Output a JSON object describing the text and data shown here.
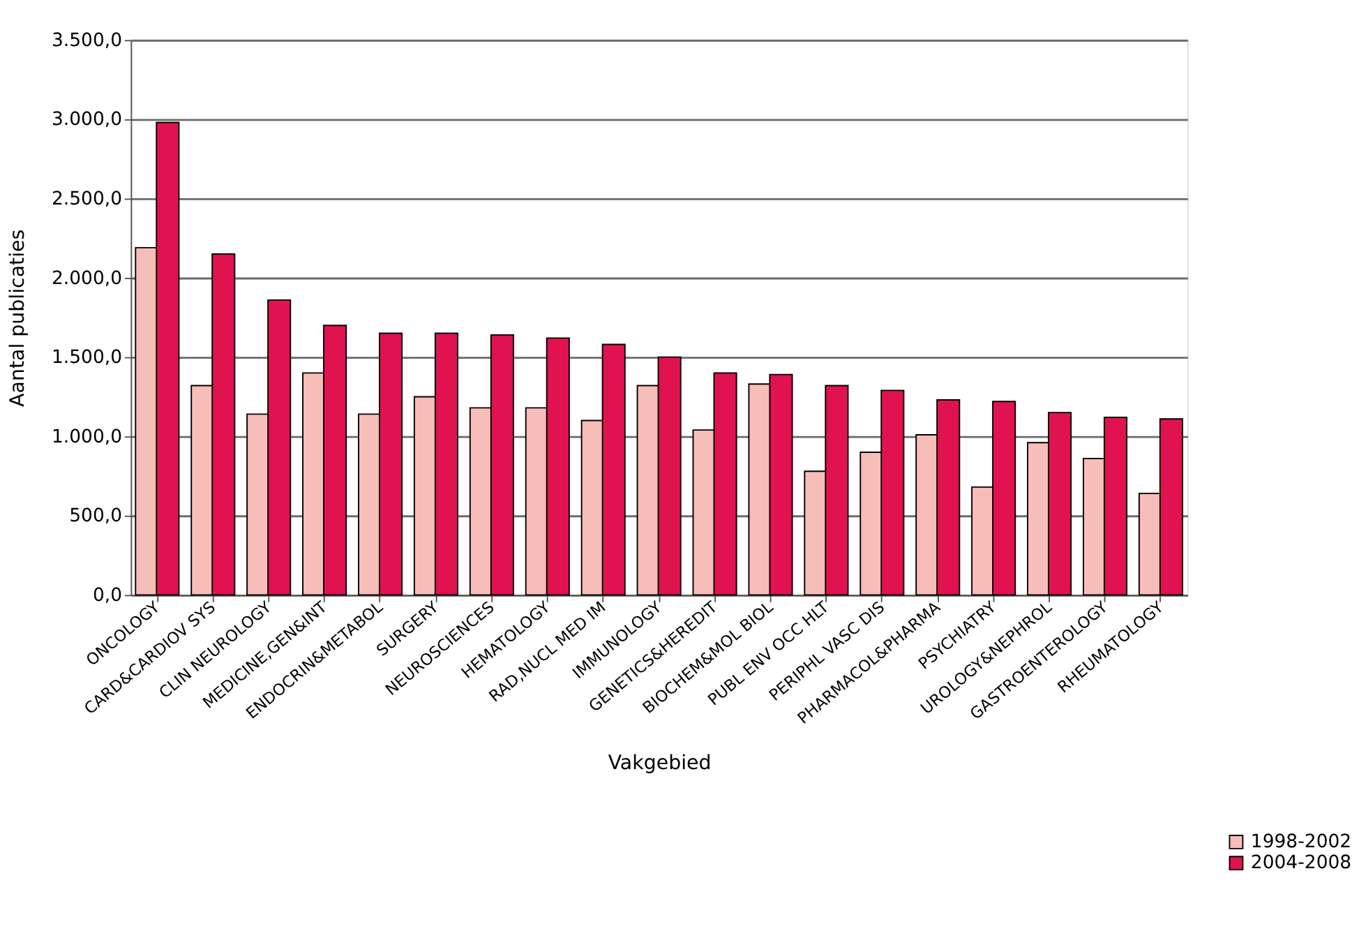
{
  "chart_data": {
    "type": "bar",
    "xlabel": "Vakgebied",
    "ylabel": "Aantal publicaties",
    "categories": [
      "ONCOLOGY",
      "CARD&CARDIOV SYS",
      "CLIN NEUROLOGY",
      "MEDICINE,GEN&INT",
      "ENDOCRIN&METABOL",
      "SURGERY",
      "NEUROSCIENCES",
      "HEMATOLOGY",
      "RAD,NUCL MED IM",
      "IMMUNOLOGY",
      "GENETICS&HEREDIT",
      "BIOCHEM&MOL BIOL",
      "PUBL ENV OCC HLT",
      "PERIPHL VASC DIS",
      "PHARMACOL&PHARMA",
      "PSYCHIATRY",
      "UROLOGY&NEPHROL",
      "GASTROENTEROLOGY",
      "RHEUMATOLOGY"
    ],
    "series": [
      {
        "name": "1998-2002",
        "color": "#f7bdb8",
        "values": [
          2190,
          1320,
          1140,
          1400,
          1140,
          1250,
          1180,
          1180,
          1100,
          1320,
          1040,
          1330,
          780,
          900,
          1010,
          680,
          960,
          860,
          640
        ]
      },
      {
        "name": "2004-2008",
        "color": "#e0124f",
        "values": [
          2980,
          2150,
          1860,
          1700,
          1650,
          1650,
          1640,
          1620,
          1580,
          1500,
          1400,
          1390,
          1320,
          1290,
          1230,
          1220,
          1150,
          1120,
          1110
        ]
      }
    ],
    "ylim": [
      0,
      3500
    ],
    "yticks": [
      {
        "value": 0,
        "label": "0,0"
      },
      {
        "value": 500,
        "label": "500,0"
      },
      {
        "value": 1000,
        "label": "1.000,0"
      },
      {
        "value": 1500,
        "label": "1.500,0"
      },
      {
        "value": 2000,
        "label": "2.000,0"
      },
      {
        "value": 2500,
        "label": "2.500,0"
      },
      {
        "value": 3000,
        "label": "3.000,0"
      },
      {
        "value": 3500,
        "label": "3.500,0"
      }
    ],
    "grid": "y",
    "legend": "bottom right"
  }
}
